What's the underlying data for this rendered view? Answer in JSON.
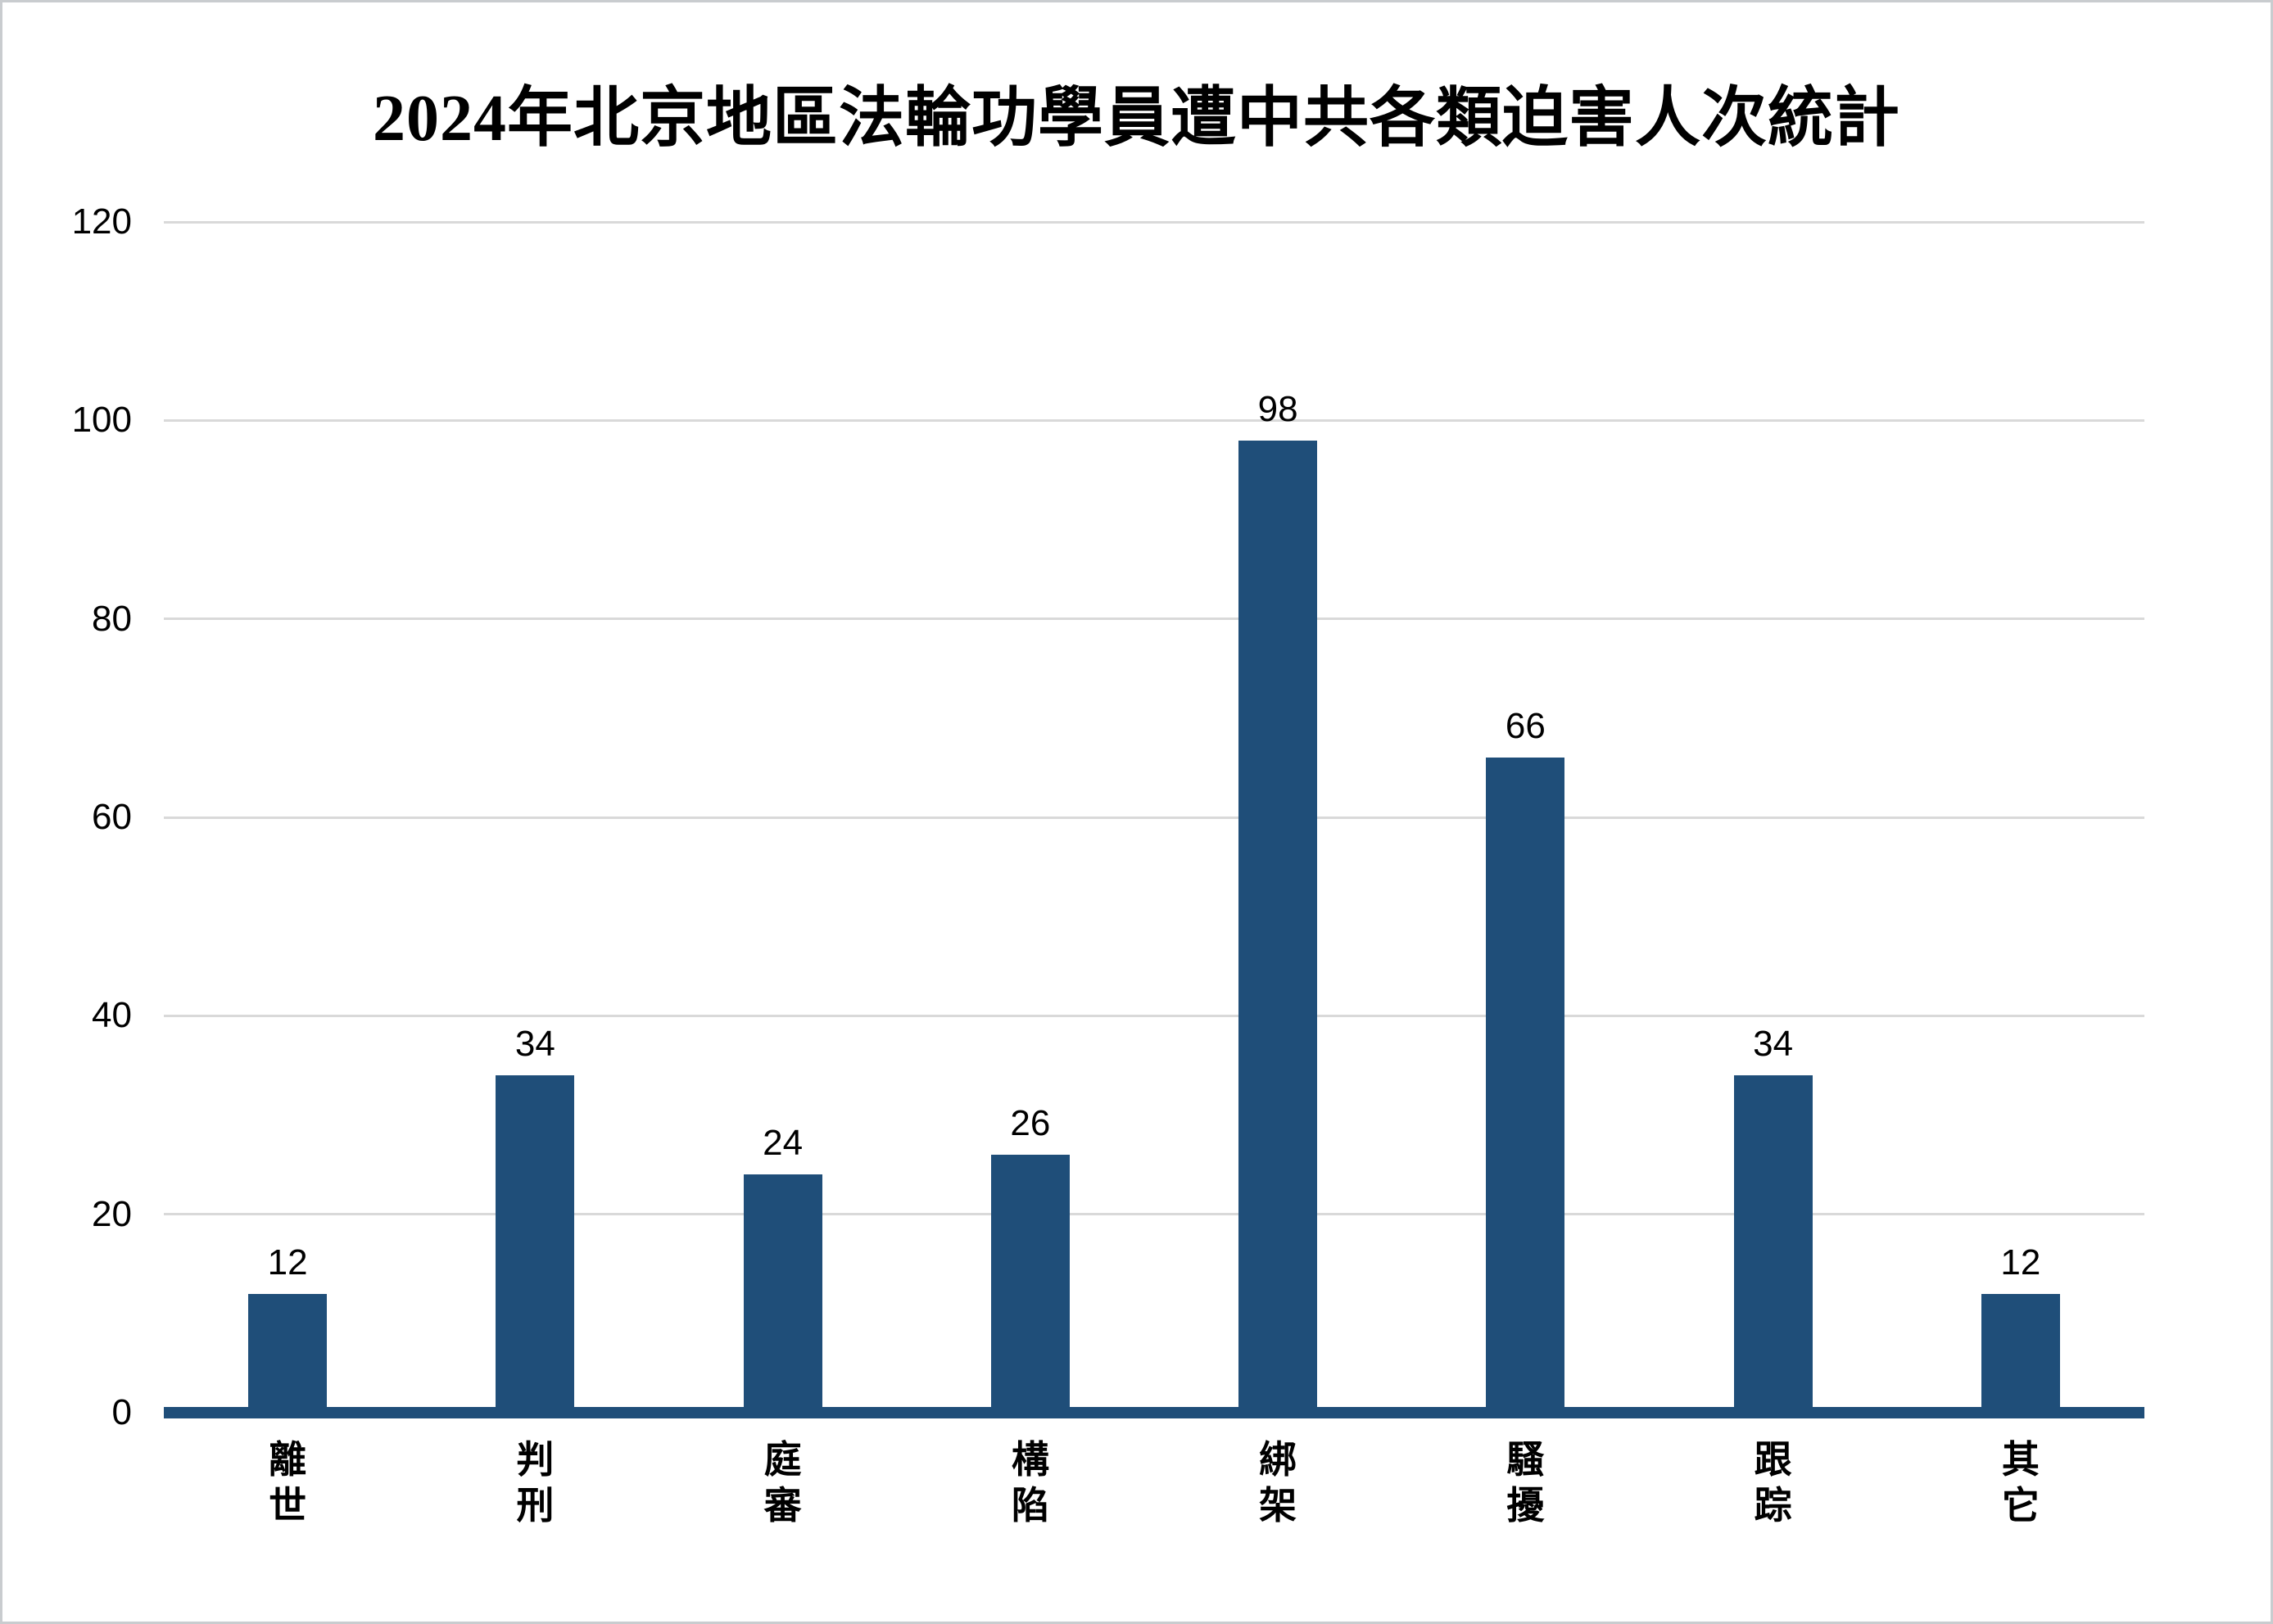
{
  "window": {
    "background_color": "#ffffff",
    "border_color": "#c9cccf"
  },
  "chart_data": {
    "type": "bar",
    "title": "2024年北京地區法輪功學員遭中共各類迫害人次統計",
    "categories": [
      "離世",
      "判刑",
      "庭審",
      "構陷",
      "綁架",
      "騷擾",
      "跟踪",
      "其它"
    ],
    "values": [
      12,
      34,
      24,
      26,
      98,
      66,
      34,
      12
    ],
    "data_labels": [
      "12",
      "34",
      "24",
      "26",
      "98",
      "66",
      "34",
      "12"
    ],
    "xlabel": "",
    "ylabel": "",
    "ylim": [
      0,
      120
    ],
    "yticks": [
      0,
      20,
      40,
      60,
      80,
      100,
      120
    ],
    "ytick_labels": [
      "0",
      "20",
      "40",
      "60",
      "80",
      "100",
      "120"
    ],
    "grid": "horizontal",
    "legend_position": "none",
    "bar_color": "#1f4e79",
    "axis_line_color": "#1f4e79",
    "gridline_color": "#d9d9d9",
    "label_color": "#000000",
    "category_text_orientation": "vertical-stacked"
  }
}
